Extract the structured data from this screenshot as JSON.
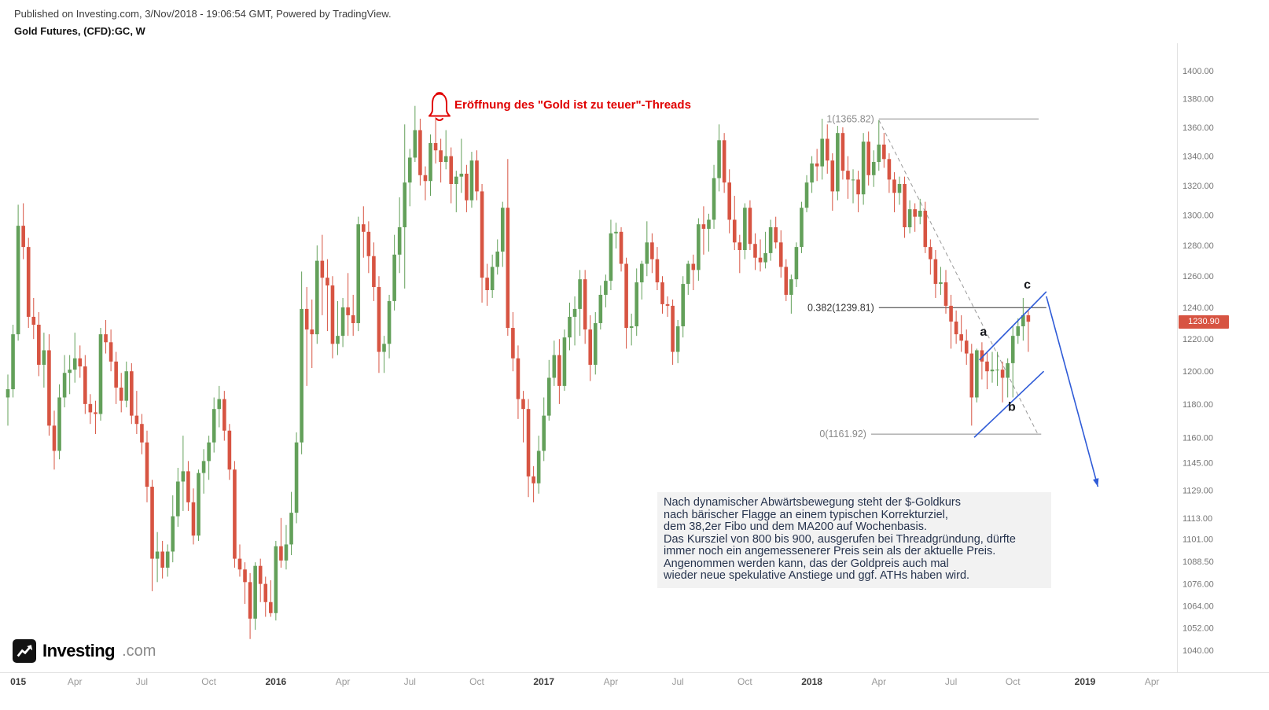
{
  "header": {
    "published": "Published on Investing.com, 3/Nov/2018 - 19:06:54 GMT, Powered by TradingView.",
    "symbol": "Gold Futures, (CFD):GC, W"
  },
  "logo": {
    "name": "Investing",
    "tld": ".com"
  },
  "price_badge": {
    "value": "1230.90"
  },
  "annotations": {
    "bell_text": "Eröffnung des \"Gold ist zu teuer\"-Threads",
    "note_lines": [
      "Nach dynamischer Abwärtsbewegung steht der $-Goldkurs",
      "nach bärischer Flagge an einem typischen Korrekturziel,",
      "dem 38,2er Fibo und dem MA200 auf Wochenbasis.",
      "Das Kursziel von 800 bis 900, ausgerufen bei Threadgründung, dürfte",
      "immer noch ein angemessenerer Preis sein als der aktuelle Preis.",
      "Angenommen werden kann, das der Goldpreis auch mal",
      "wieder neue spekulative Anstiege und ggf. ATHs haben wird."
    ]
  },
  "chart_data": {
    "type": "candlestick",
    "title": "Gold Futures, (CFD):GC, W",
    "timeframe": "weekly",
    "x_range": "Jan 2015 - Nov 2018 (axis extends to Apr 2019)",
    "yscale": "log",
    "ylim": [
      1040,
      1400
    ],
    "last_price": 1230.9,
    "colors": {
      "up": "#63a05a",
      "down": "#d75442",
      "flag": "#2f5bd7",
      "trend_dash": "#9a9a9a"
    },
    "y_ticks": [
      {
        "label": "1400.00",
        "value": 1400
      },
      {
        "label": "1380.00",
        "value": 1380
      },
      {
        "label": "1360.00",
        "value": 1360
      },
      {
        "label": "1340.00",
        "value": 1340
      },
      {
        "label": "1320.00",
        "value": 1320
      },
      {
        "label": "1300.00",
        "value": 1300
      },
      {
        "label": "1280.00",
        "value": 1280
      },
      {
        "label": "1260.00",
        "value": 1260
      },
      {
        "label": "1240.00",
        "value": 1240
      },
      {
        "label": "1220.00",
        "value": 1220
      },
      {
        "label": "1200.00",
        "value": 1200
      },
      {
        "label": "1180.00",
        "value": 1180
      },
      {
        "label": "1160.00",
        "value": 1160
      },
      {
        "label": "1145.00",
        "value": 1145
      },
      {
        "label": "1129.00",
        "value": 1129
      },
      {
        "label": "1113.00",
        "value": 1113
      },
      {
        "label": "1101.00",
        "value": 1101
      },
      {
        "label": "1088.50",
        "value": 1088.5
      },
      {
        "label": "1076.00",
        "value": 1076
      },
      {
        "label": "1064.00",
        "value": 1064
      },
      {
        "label": "1052.00",
        "value": 1052
      },
      {
        "label": "1040.00",
        "value": 1040
      }
    ],
    "x_ticks": [
      {
        "label": "015",
        "week": 2,
        "year": true
      },
      {
        "label": "Apr",
        "week": 13
      },
      {
        "label": "Jul",
        "week": 26
      },
      {
        "label": "Oct",
        "week": 39
      },
      {
        "label": "2016",
        "week": 52,
        "year": true
      },
      {
        "label": "Apr",
        "week": 65
      },
      {
        "label": "Jul",
        "week": 78
      },
      {
        "label": "Oct",
        "week": 91
      },
      {
        "label": "2017",
        "week": 104,
        "year": true
      },
      {
        "label": "Apr",
        "week": 117
      },
      {
        "label": "Jul",
        "week": 130
      },
      {
        "label": "Oct",
        "week": 143
      },
      {
        "label": "2018",
        "week": 156,
        "year": true
      },
      {
        "label": "Apr",
        "week": 169
      },
      {
        "label": "Jul",
        "week": 183
      },
      {
        "label": "Oct",
        "week": 195
      },
      {
        "label": "2019",
        "week": 209,
        "year": true
      },
      {
        "label": "Apr",
        "week": 222
      }
    ],
    "fib_levels": [
      {
        "label": "1(1365.82)",
        "value": 1365.82,
        "week_start": 169,
        "week_end": 200,
        "color": "#8a8a8a",
        "label_color": "#8a8a8a"
      },
      {
        "label": "0.382(1239.81)",
        "value": 1239.81,
        "week_start": 169,
        "week_end": 201.5,
        "color": "#333333",
        "label_color": "#333333"
      },
      {
        "label": "0(1161.92)",
        "value": 1161.92,
        "week_start": 167.5,
        "week_end": 200.5,
        "color": "#8a8a8a",
        "label_color": "#8a8a8a"
      }
    ],
    "trendline_dashed": {
      "from": {
        "week": 169,
        "value": 1365
      },
      "to": {
        "week": 200,
        "value": 1161
      }
    },
    "flag_lines": [
      {
        "from": {
          "week": 187.5,
          "value": 1160
        },
        "to": {
          "week": 201,
          "value": 1200
        }
      },
      {
        "from": {
          "week": 188.5,
          "value": 1207
        },
        "to": {
          "week": 201.5,
          "value": 1250
        }
      }
    ],
    "projection_arrow": {
      "from": {
        "week": 201.5,
        "value": 1247
      },
      "to": {
        "week": 211.5,
        "value": 1131
      }
    },
    "wave_labels": [
      {
        "text": "a",
        "week": 189.3,
        "value": 1222
      },
      {
        "text": "b",
        "week": 194.8,
        "value": 1176
      },
      {
        "text": "c",
        "week": 197.8,
        "value": 1252
      }
    ],
    "candles": [
      [
        1184,
        1198,
        1167,
        1189
      ],
      [
        1189,
        1229,
        1184,
        1223
      ],
      [
        1223,
        1307,
        1219,
        1293
      ],
      [
        1293,
        1308,
        1271,
        1279
      ],
      [
        1279,
        1285,
        1227,
        1234
      ],
      [
        1234,
        1246,
        1220,
        1229
      ],
      [
        1229,
        1237,
        1197,
        1204
      ],
      [
        1204,
        1224,
        1190,
        1213
      ],
      [
        1213,
        1223,
        1161,
        1167
      ],
      [
        1167,
        1176,
        1141,
        1152
      ],
      [
        1152,
        1192,
        1147,
        1184
      ],
      [
        1184,
        1210,
        1178,
        1199
      ],
      [
        1199,
        1210,
        1186,
        1201
      ],
      [
        1201,
        1224,
        1193,
        1208
      ],
      [
        1208,
        1216,
        1196,
        1203
      ],
      [
        1203,
        1210,
        1174,
        1180
      ],
      [
        1180,
        1186,
        1168,
        1175
      ],
      [
        1175,
        1182,
        1162,
        1174
      ],
      [
        1174,
        1227,
        1170,
        1223
      ],
      [
        1223,
        1232,
        1211,
        1218
      ],
      [
        1218,
        1226,
        1200,
        1206
      ],
      [
        1206,
        1212,
        1180,
        1190
      ],
      [
        1190,
        1199,
        1175,
        1182
      ],
      [
        1182,
        1206,
        1178,
        1200
      ],
      [
        1200,
        1205,
        1168,
        1173
      ],
      [
        1173,
        1188,
        1162,
        1168
      ],
      [
        1168,
        1174,
        1150,
        1157
      ],
      [
        1157,
        1164,
        1122,
        1131
      ],
      [
        1131,
        1135,
        1072,
        1090
      ],
      [
        1090,
        1105,
        1077,
        1094
      ],
      [
        1094,
        1100,
        1079,
        1085
      ],
      [
        1085,
        1098,
        1080,
        1094
      ],
      [
        1094,
        1126,
        1088,
        1114
      ],
      [
        1114,
        1142,
        1108,
        1134
      ],
      [
        1134,
        1161,
        1117,
        1140
      ],
      [
        1140,
        1146,
        1117,
        1122
      ],
      [
        1122,
        1130,
        1098,
        1103
      ],
      [
        1103,
        1141,
        1100,
        1139
      ],
      [
        1139,
        1153,
        1127,
        1146
      ],
      [
        1146,
        1161,
        1135,
        1157
      ],
      [
        1157,
        1184,
        1151,
        1177
      ],
      [
        1177,
        1191,
        1166,
        1183
      ],
      [
        1183,
        1188,
        1158,
        1164
      ],
      [
        1164,
        1168,
        1135,
        1141
      ],
      [
        1141,
        1146,
        1085,
        1090
      ],
      [
        1090,
        1098,
        1080,
        1084
      ],
      [
        1084,
        1088,
        1065,
        1077
      ],
      [
        1077,
        1082,
        1046,
        1057
      ],
      [
        1057,
        1088,
        1051,
        1086
      ],
      [
        1086,
        1090,
        1066,
        1076
      ],
      [
        1076,
        1080,
        1058,
        1066
      ],
      [
        1066,
        1078,
        1058,
        1060
      ],
      [
        1060,
        1100,
        1056,
        1097
      ],
      [
        1097,
        1113,
        1085,
        1089
      ],
      [
        1089,
        1109,
        1084,
        1098
      ],
      [
        1098,
        1128,
        1092,
        1116
      ],
      [
        1116,
        1163,
        1110,
        1157
      ],
      [
        1157,
        1263,
        1150,
        1239
      ],
      [
        1239,
        1253,
        1191,
        1226
      ],
      [
        1226,
        1245,
        1202,
        1223
      ],
      [
        1223,
        1280,
        1217,
        1270
      ],
      [
        1270,
        1287,
        1235,
        1259
      ],
      [
        1259,
        1271,
        1225,
        1254
      ],
      [
        1254,
        1260,
        1208,
        1217
      ],
      [
        1217,
        1244,
        1210,
        1222
      ],
      [
        1222,
        1246,
        1215,
        1240
      ],
      [
        1240,
        1262,
        1222,
        1235
      ],
      [
        1235,
        1248,
        1222,
        1230
      ],
      [
        1230,
        1299,
        1225,
        1294
      ],
      [
        1294,
        1306,
        1272,
        1289
      ],
      [
        1289,
        1296,
        1262,
        1273
      ],
      [
        1273,
        1282,
        1244,
        1253
      ],
      [
        1253,
        1260,
        1199,
        1212
      ],
      [
        1212,
        1222,
        1199,
        1217
      ],
      [
        1217,
        1248,
        1208,
        1244
      ],
      [
        1244,
        1287,
        1238,
        1274
      ],
      [
        1274,
        1312,
        1262,
        1292
      ],
      [
        1292,
        1362,
        1252,
        1322
      ],
      [
        1322,
        1345,
        1306,
        1339
      ],
      [
        1339,
        1375,
        1336,
        1358
      ],
      [
        1358,
        1366,
        1320,
        1327
      ],
      [
        1327,
        1333,
        1310,
        1323
      ],
      [
        1323,
        1355,
        1313,
        1349
      ],
      [
        1349,
        1367,
        1335,
        1344
      ],
      [
        1344,
        1352,
        1322,
        1336
      ],
      [
        1336,
        1358,
        1331,
        1340
      ],
      [
        1340,
        1346,
        1308,
        1321
      ],
      [
        1321,
        1330,
        1302,
        1326
      ],
      [
        1326,
        1352,
        1315,
        1328
      ],
      [
        1328,
        1334,
        1302,
        1310
      ],
      [
        1310,
        1343,
        1305,
        1337
      ],
      [
        1337,
        1344,
        1310,
        1316
      ],
      [
        1316,
        1321,
        1243,
        1259
      ],
      [
        1259,
        1268,
        1241,
        1251
      ],
      [
        1251,
        1274,
        1246,
        1266
      ],
      [
        1266,
        1284,
        1261,
        1276
      ],
      [
        1276,
        1309,
        1266,
        1305
      ],
      [
        1305,
        1338,
        1222,
        1227
      ],
      [
        1227,
        1237,
        1200,
        1208
      ],
      [
        1208,
        1216,
        1171,
        1183
      ],
      [
        1183,
        1188,
        1157,
        1177
      ],
      [
        1177,
        1183,
        1125,
        1137
      ],
      [
        1137,
        1143,
        1122,
        1133
      ],
      [
        1133,
        1161,
        1127,
        1152
      ],
      [
        1152,
        1184,
        1146,
        1173
      ],
      [
        1173,
        1207,
        1170,
        1196
      ],
      [
        1196,
        1219,
        1191,
        1210
      ],
      [
        1210,
        1220,
        1180,
        1191
      ],
      [
        1191,
        1226,
        1188,
        1221
      ],
      [
        1221,
        1243,
        1213,
        1234
      ],
      [
        1234,
        1247,
        1216,
        1239
      ],
      [
        1239,
        1264,
        1222,
        1258
      ],
      [
        1258,
        1264,
        1217,
        1226
      ],
      [
        1226,
        1235,
        1194,
        1204
      ],
      [
        1204,
        1237,
        1198,
        1230
      ],
      [
        1230,
        1254,
        1226,
        1248
      ],
      [
        1248,
        1261,
        1240,
        1257
      ],
      [
        1257,
        1297,
        1251,
        1288
      ],
      [
        1288,
        1295,
        1278,
        1289
      ],
      [
        1289,
        1292,
        1263,
        1268
      ],
      [
        1268,
        1272,
        1214,
        1227
      ],
      [
        1227,
        1236,
        1216,
        1228
      ],
      [
        1228,
        1265,
        1222,
        1256
      ],
      [
        1256,
        1270,
        1245,
        1268
      ],
      [
        1268,
        1296,
        1260,
        1282
      ],
      [
        1282,
        1288,
        1262,
        1271
      ],
      [
        1271,
        1279,
        1251,
        1256
      ],
      [
        1256,
        1260,
        1236,
        1242
      ],
      [
        1242,
        1247,
        1234,
        1241
      ],
      [
        1241,
        1245,
        1204,
        1212
      ],
      [
        1212,
        1232,
        1205,
        1228
      ],
      [
        1228,
        1260,
        1221,
        1255
      ],
      [
        1255,
        1270,
        1248,
        1268
      ],
      [
        1268,
        1274,
        1251,
        1264
      ],
      [
        1264,
        1298,
        1257,
        1294
      ],
      [
        1294,
        1306,
        1274,
        1291
      ],
      [
        1291,
        1301,
        1276,
        1297
      ],
      [
        1297,
        1334,
        1291,
        1325
      ],
      [
        1325,
        1362,
        1316,
        1351
      ],
      [
        1351,
        1356,
        1315,
        1322
      ],
      [
        1322,
        1331,
        1288,
        1297
      ],
      [
        1297,
        1313,
        1277,
        1282
      ],
      [
        1282,
        1287,
        1262,
        1277
      ],
      [
        1277,
        1308,
        1271,
        1305
      ],
      [
        1305,
        1310,
        1277,
        1281
      ],
      [
        1281,
        1288,
        1264,
        1272
      ],
      [
        1272,
        1284,
        1263,
        1269
      ],
      [
        1269,
        1289,
        1265,
        1275
      ],
      [
        1275,
        1297,
        1270,
        1292
      ],
      [
        1292,
        1299,
        1278,
        1282
      ],
      [
        1282,
        1290,
        1259,
        1266
      ],
      [
        1266,
        1271,
        1244,
        1248
      ],
      [
        1248,
        1261,
        1236,
        1258
      ],
      [
        1258,
        1282,
        1253,
        1279
      ],
      [
        1279,
        1309,
        1275,
        1305
      ],
      [
        1305,
        1327,
        1302,
        1322
      ],
      [
        1322,
        1340,
        1315,
        1335
      ],
      [
        1335,
        1345,
        1323,
        1333
      ],
      [
        1333,
        1366,
        1324,
        1352
      ],
      [
        1352,
        1362,
        1328,
        1337
      ],
      [
        1337,
        1342,
        1303,
        1316
      ],
      [
        1316,
        1361,
        1310,
        1356
      ],
      [
        1356,
        1360,
        1324,
        1330
      ],
      [
        1330,
        1340,
        1311,
        1324
      ],
      [
        1324,
        1331,
        1308,
        1324
      ],
      [
        1324,
        1330,
        1302,
        1314
      ],
      [
        1314,
        1356,
        1307,
        1350
      ],
      [
        1350,
        1357,
        1320,
        1327
      ],
      [
        1327,
        1344,
        1319,
        1336
      ],
      [
        1336,
        1365,
        1330,
        1348
      ],
      [
        1348,
        1356,
        1332,
        1338
      ],
      [
        1338,
        1342,
        1315,
        1324
      ],
      [
        1324,
        1329,
        1302,
        1315
      ],
      [
        1315,
        1326,
        1307,
        1321
      ],
      [
        1321,
        1326,
        1285,
        1292
      ],
      [
        1292,
        1310,
        1288,
        1304
      ],
      [
        1304,
        1308,
        1289,
        1299
      ],
      [
        1299,
        1311,
        1294,
        1303
      ],
      [
        1303,
        1309,
        1275,
        1279
      ],
      [
        1279,
        1284,
        1261,
        1271
      ],
      [
        1271,
        1277,
        1246,
        1255
      ],
      [
        1255,
        1266,
        1248,
        1256
      ],
      [
        1256,
        1264,
        1236,
        1241
      ],
      [
        1241,
        1248,
        1214,
        1231
      ],
      [
        1231,
        1238,
        1217,
        1223
      ],
      [
        1223,
        1235,
        1212,
        1219
      ],
      [
        1219,
        1226,
        1204,
        1211
      ],
      [
        1211,
        1217,
        1167,
        1184
      ],
      [
        1184,
        1214,
        1181,
        1213
      ],
      [
        1213,
        1218,
        1195,
        1206
      ],
      [
        1206,
        1212,
        1189,
        1200
      ],
      [
        1200,
        1212,
        1193,
        1201
      ],
      [
        1201,
        1212,
        1191,
        1201
      ],
      [
        1201,
        1206,
        1181,
        1196
      ],
      [
        1196,
        1208,
        1184,
        1205
      ],
      [
        1205,
        1228,
        1184,
        1222
      ],
      [
        1222,
        1233,
        1217,
        1228
      ],
      [
        1228,
        1246,
        1219,
        1235
      ],
      [
        1235,
        1238,
        1212,
        1230.9
      ]
    ]
  }
}
